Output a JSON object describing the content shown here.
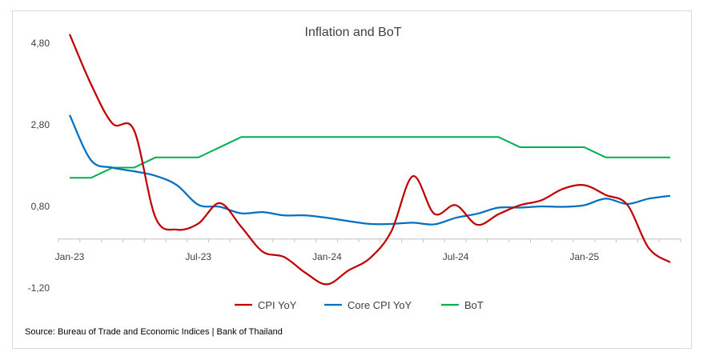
{
  "chart_data": {
    "type": "line",
    "title": "Inflation and BoT",
    "xlabel": "",
    "ylabel": "",
    "ylim": [
      -1.2,
      4.8
    ],
    "yticks": [
      -1.2,
      0.8,
      2.8,
      4.8
    ],
    "ytick_labels": [
      "-1,20",
      "0,80",
      "2,80",
      "4,80"
    ],
    "x": [
      "Jan-23",
      "Feb-23",
      "Mar-23",
      "Apr-23",
      "May-23",
      "Jun-23",
      "Jul-23",
      "Aug-23",
      "Sep-23",
      "Oct-23",
      "Nov-23",
      "Dec-23",
      "Jan-24",
      "Feb-24",
      "Mar-24",
      "Apr-24",
      "May-24",
      "Jun-24",
      "Jul-24",
      "Aug-24",
      "Sep-24",
      "Oct-24",
      "Nov-24",
      "Dec-24",
      "Jan-25",
      "Feb-25",
      "Mar-25",
      "Apr-25",
      "May-25"
    ],
    "xtick_labels": [
      {
        "index": 0,
        "label": "Jan-23"
      },
      {
        "index": 6,
        "label": "Jul-23"
      },
      {
        "index": 12,
        "label": "Jan-24"
      },
      {
        "index": 18,
        "label": "Jul-24"
      },
      {
        "index": 24,
        "label": "Jan-25"
      }
    ],
    "series": [
      {
        "name": "CPI YoY",
        "color": "#c00000",
        "values": [
          5.02,
          3.79,
          2.83,
          2.67,
          0.53,
          0.23,
          0.38,
          0.88,
          0.3,
          -0.31,
          -0.44,
          -0.83,
          -1.11,
          -0.77,
          -0.47,
          0.19,
          1.54,
          0.62,
          0.83,
          0.35,
          0.61,
          0.83,
          0.95,
          1.23,
          1.32,
          1.08,
          0.84,
          -0.22,
          -0.57
        ]
      },
      {
        "name": "Core CPI YoY",
        "color": "#0070c0",
        "values": [
          3.04,
          1.93,
          1.75,
          1.66,
          1.55,
          1.32,
          0.84,
          0.79,
          0.63,
          0.66,
          0.58,
          0.58,
          0.52,
          0.44,
          0.37,
          0.37,
          0.4,
          0.36,
          0.52,
          0.62,
          0.77,
          0.77,
          0.8,
          0.79,
          0.83,
          0.99,
          0.86,
          0.99,
          1.06
        ]
      },
      {
        "name": "BoT",
        "color": "#00b050",
        "values": [
          1.5,
          1.5,
          1.75,
          1.75,
          2.0,
          2.0,
          2.0,
          2.25,
          2.5,
          2.5,
          2.5,
          2.5,
          2.5,
          2.5,
          2.5,
          2.5,
          2.5,
          2.5,
          2.5,
          2.5,
          2.5,
          2.25,
          2.25,
          2.25,
          2.25,
          2.0,
          2.0,
          2.0,
          2.0
        ]
      }
    ],
    "legend": "bottom",
    "grid": false,
    "source": "Source: Bureau of Trade and Economic Indices | Bank of Thailand"
  }
}
